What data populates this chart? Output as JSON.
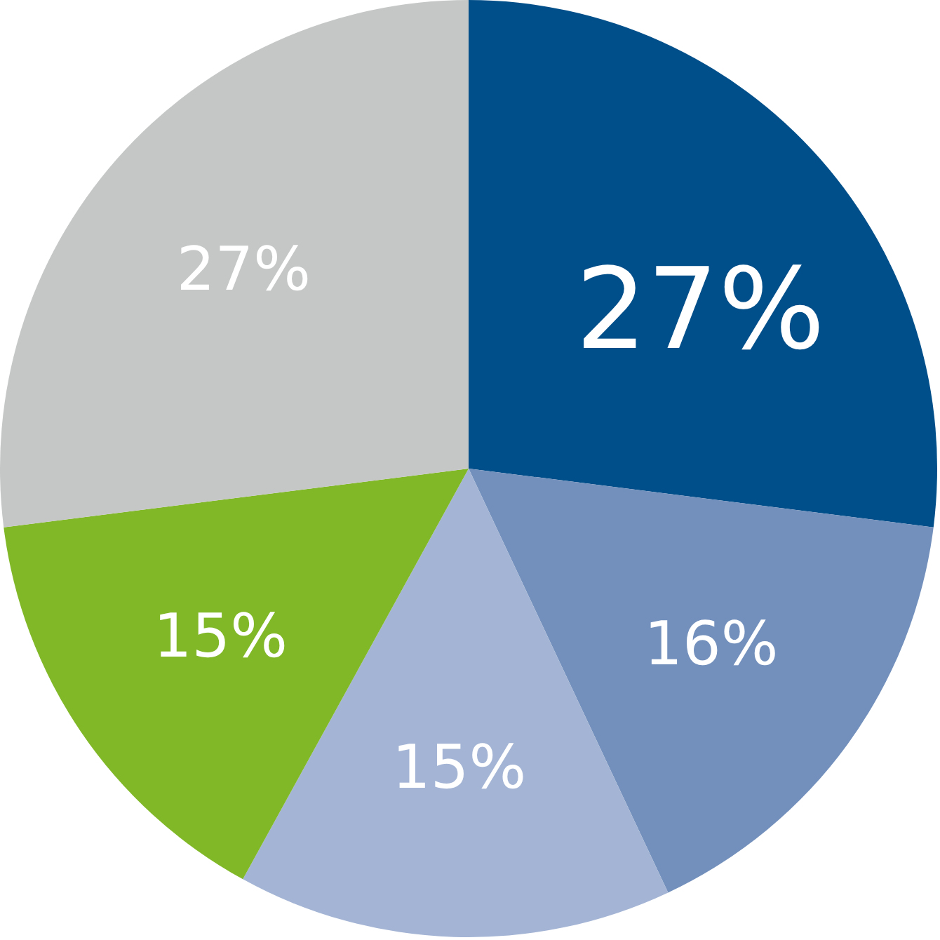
{
  "chart_data": {
    "type": "pie",
    "categories": [
      null,
      null,
      null,
      null,
      null
    ],
    "values": [
      27,
      16,
      15,
      15,
      27
    ],
    "colors": [
      "#004f8a",
      "#7390bc",
      "#a3b4d4",
      "#80b827",
      "#c5c6c6"
    ],
    "value_labels": [
      "27%",
      "16%",
      "15%",
      "15%",
      "27%"
    ]
  }
}
